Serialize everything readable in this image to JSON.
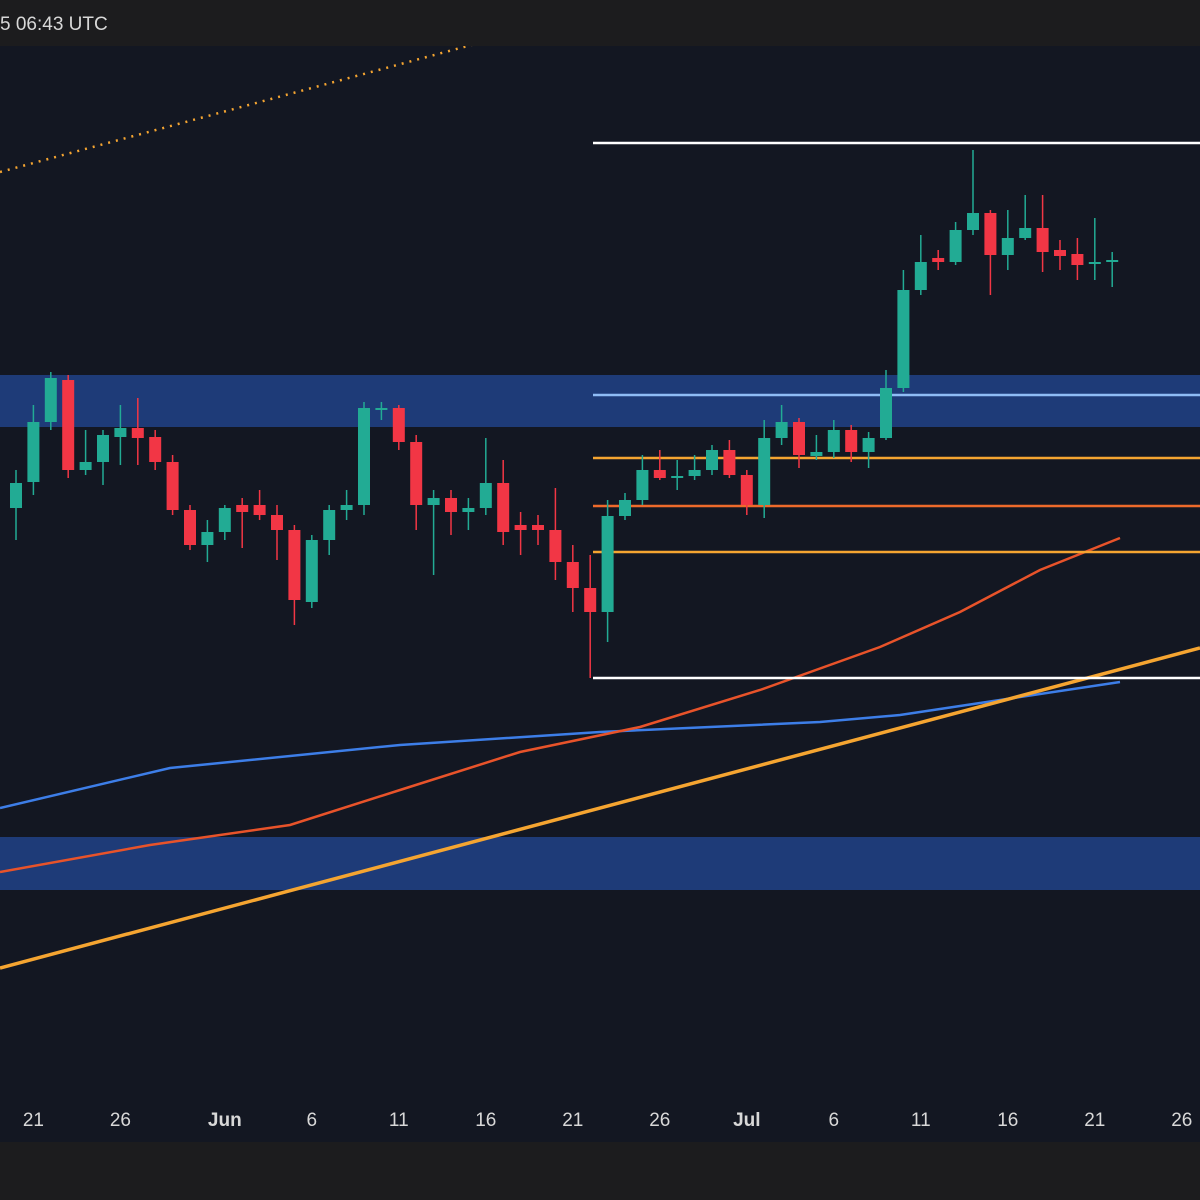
{
  "status_bar": {
    "time": "5 06:43 UTC"
  },
  "chart_data": {
    "type": "candlestick",
    "categories": [
      null,
      "21",
      null,
      null,
      null,
      null,
      "26",
      null,
      null,
      null,
      null,
      null,
      "Jun",
      null,
      null,
      null,
      null,
      "6",
      null,
      null,
      null,
      null,
      "11",
      null,
      null,
      null,
      null,
      "16",
      null,
      null,
      null,
      null,
      "21",
      null,
      null,
      null,
      null,
      "26",
      null,
      null,
      null,
      null,
      "Jul",
      null,
      null,
      null,
      null,
      "6",
      null,
      null,
      null,
      null,
      "11",
      null,
      null,
      null,
      null,
      "16",
      null,
      null,
      null,
      null,
      "21",
      null,
      null,
      null,
      null,
      "26"
    ],
    "open": [
      632,
      658,
      718,
      760,
      670,
      678,
      703,
      712,
      703,
      678,
      630,
      595,
      608,
      635,
      635,
      625,
      610,
      538,
      600,
      630,
      635,
      730,
      732,
      698,
      635,
      642,
      628,
      632,
      657,
      615,
      615,
      610,
      578,
      552,
      528,
      624,
      640,
      670,
      662,
      664,
      670,
      690,
      665,
      635,
      702,
      718,
      684,
      688,
      710,
      688,
      702,
      752,
      850,
      882,
      878,
      910,
      927,
      885,
      902,
      912,
      890,
      886,
      876,
      878,
      null,
      null,
      null,
      null
    ],
    "high": [
      670,
      735,
      768,
      765,
      710,
      710,
      735,
      742,
      710,
      685,
      635,
      620,
      635,
      642,
      650,
      635,
      615,
      605,
      635,
      650,
      738,
      738,
      735,
      705,
      650,
      650,
      642,
      702,
      680,
      628,
      625,
      652,
      595,
      585,
      640,
      647,
      685,
      690,
      680,
      685,
      695,
      700,
      670,
      720,
      735,
      722,
      705,
      720,
      715,
      708,
      770,
      870,
      905,
      890,
      918,
      990,
      930,
      930,
      945,
      945,
      900,
      902,
      922,
      888,
      null,
      null,
      null,
      null
    ],
    "low": [
      600,
      645,
      710,
      662,
      665,
      655,
      675,
      675,
      670,
      625,
      590,
      578,
      600,
      592,
      620,
      580,
      515,
      532,
      585,
      620,
      625,
      720,
      690,
      610,
      565,
      605,
      610,
      625,
      595,
      585,
      595,
      560,
      528,
      462,
      498,
      620,
      635,
      660,
      650,
      660,
      665,
      662,
      625,
      622,
      695,
      672,
      680,
      682,
      678,
      672,
      700,
      748,
      845,
      870,
      875,
      905,
      845,
      870,
      900,
      868,
      870,
      860,
      860,
      853,
      null,
      null,
      null,
      null
    ],
    "close": [
      657,
      718,
      762,
      670,
      678,
      705,
      712,
      702,
      678,
      630,
      595,
      608,
      632,
      628,
      625,
      610,
      540,
      600,
      630,
      635,
      732,
      732,
      698,
      635,
      642,
      628,
      632,
      657,
      608,
      610,
      610,
      578,
      552,
      528,
      624,
      640,
      670,
      662,
      664,
      670,
      690,
      665,
      635,
      702,
      718,
      685,
      688,
      710,
      688,
      702,
      752,
      850,
      878,
      878,
      910,
      927,
      885,
      902,
      912,
      888,
      884,
      875,
      878,
      880,
      null,
      null,
      null,
      null
    ],
    "up_color": "#22ab94",
    "down_color": "#f23645",
    "ylim": [
      0,
      1100
    ],
    "levels": [
      {
        "value": 997,
        "color": "#ffffff"
      },
      {
        "value": 745,
        "color": "#8fbcf5"
      },
      {
        "value": 682,
        "color": "#f5a531"
      },
      {
        "value": 634,
        "color": "#ee6a2b"
      },
      {
        "value": 588,
        "color": "#f5a531"
      },
      {
        "value": 462,
        "color": "#ffffff"
      }
    ],
    "zones": [
      {
        "from": 713,
        "to": 765,
        "color": "#1e3b78"
      },
      {
        "from": 250,
        "to": 303,
        "color": "#1e3b78"
      }
    ]
  }
}
